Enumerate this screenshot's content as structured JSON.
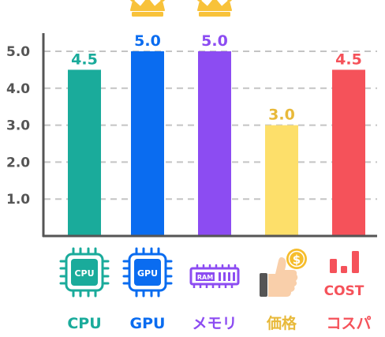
{
  "chart_data": {
    "type": "bar",
    "categories": [
      "CPU",
      "GPU",
      "メモリ",
      "価格",
      "コスパ"
    ],
    "values": [
      4.5,
      5.0,
      5.0,
      3.0,
      4.5
    ],
    "value_labels": [
      "4.5",
      "5.0",
      "5.0",
      "3.0",
      "4.5"
    ],
    "yticks": [
      "1.0",
      "2.0",
      "3.0",
      "4.0",
      "5.0"
    ],
    "ylim": [
      0,
      5.0
    ],
    "grid": "dashed-horizontal",
    "colors": [
      "#1aab9b",
      "#0a6cf0",
      "#8c4cf2",
      "#fddf6a",
      "#f5525a"
    ],
    "label_colors": [
      "#1aab9b",
      "#0a6cf0",
      "#8c4cf2",
      "#e8b93a",
      "#f5525a"
    ],
    "crowned": [
      false,
      true,
      true,
      false,
      false
    ],
    "icons": [
      "cpu-chip-icon",
      "gpu-chip-icon",
      "ram-memory-icon",
      "thumbs-up-coin-icon",
      "cost-bars-icon"
    ],
    "icon_texts": {
      "cpu": "CPU",
      "gpu": "GPU",
      "ram": "RAM",
      "coin": "$",
      "cost": "COST"
    }
  }
}
